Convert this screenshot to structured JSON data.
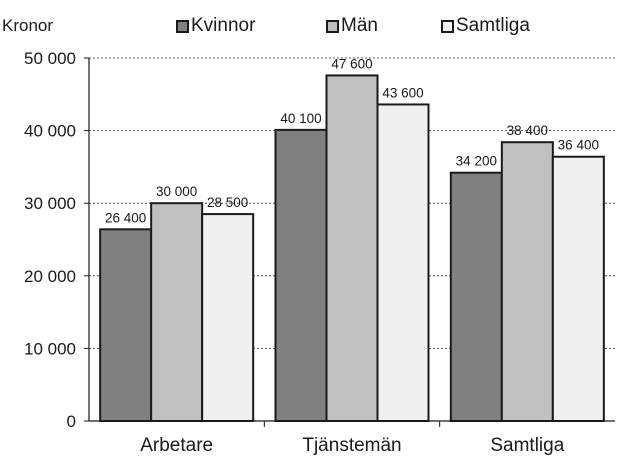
{
  "chart_data": {
    "type": "bar",
    "ylabel": "Kronor",
    "categories": [
      "Arbetare",
      "Tjänstemän",
      "Samtliga"
    ],
    "series": [
      {
        "name": "Kvinnor",
        "values": [
          26400,
          40100,
          34200
        ],
        "color": "#808080"
      },
      {
        "name": "Män",
        "values": [
          30000,
          47600,
          38400
        ],
        "color": "#c0c0c0"
      },
      {
        "name": "Samtliga",
        "values": [
          28500,
          43600,
          36400
        ],
        "color": "#f0f0f0"
      }
    ],
    "data_labels": [
      [
        "26 400",
        "40 100",
        "34 200"
      ],
      [
        "30 000",
        "47 600",
        "38 400"
      ],
      [
        "28 500",
        "43 600",
        "36 400"
      ]
    ],
    "yticks": [
      0,
      10000,
      20000,
      30000,
      40000,
      50000
    ],
    "ytick_labels": [
      "0",
      "10 000",
      "20 000",
      "30 000",
      "40 000",
      "50 000"
    ],
    "ylim": [
      0,
      50000
    ],
    "grid": "horizontal dashed",
    "legend_position": "top"
  }
}
